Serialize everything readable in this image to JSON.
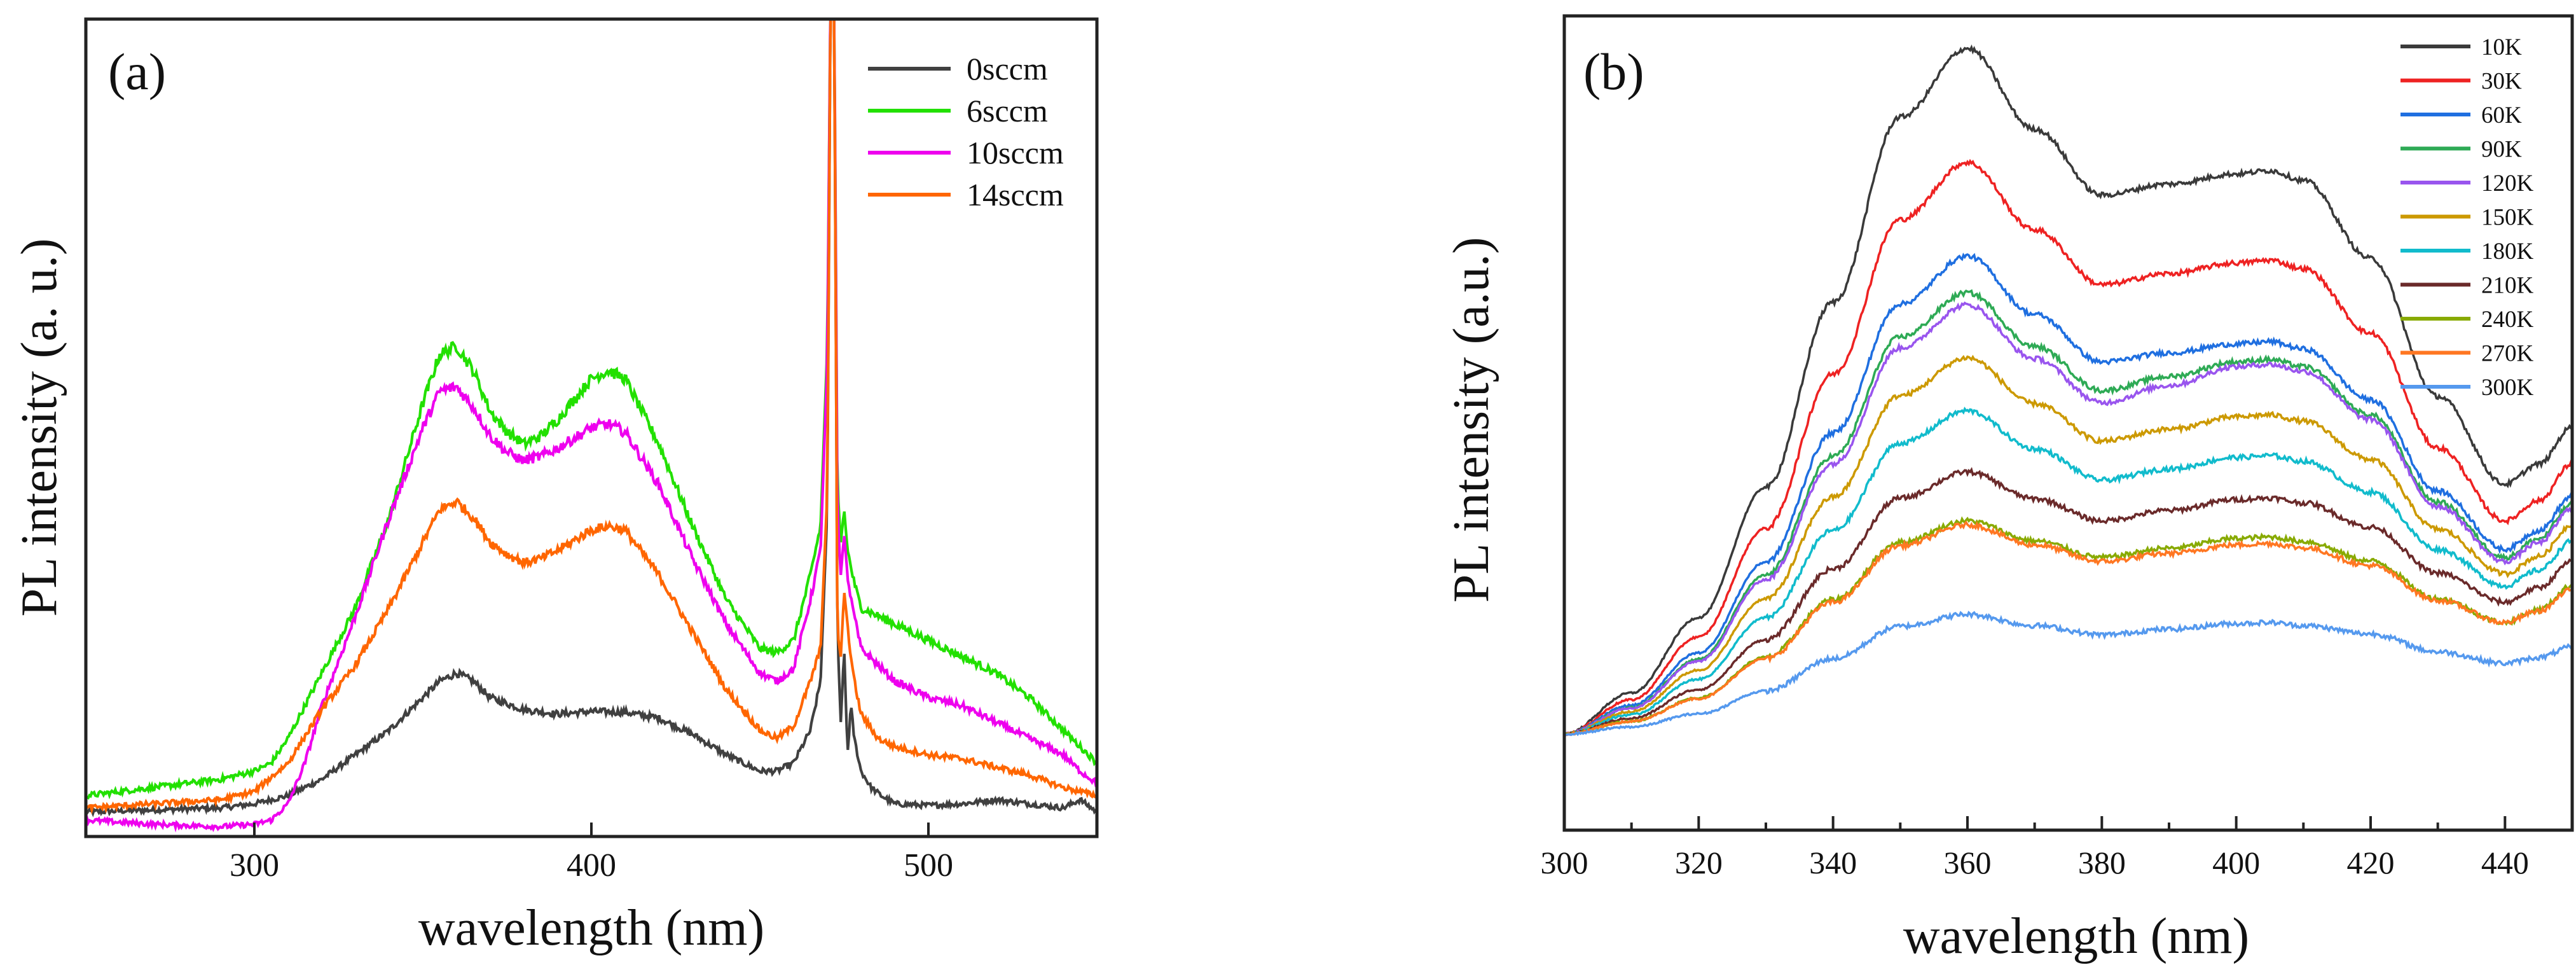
{
  "chart_data": [
    {
      "panel_label": "(a)",
      "type": "line",
      "xlabel": "wavelength (nm)",
      "ylabel": "PL intensity (a. u.)",
      "xlim": [
        250,
        550
      ],
      "ylim": [
        0,
        1000
      ],
      "xticks": [
        300,
        400,
        500
      ],
      "xtick_labels": [
        "300",
        "400",
        "500"
      ],
      "yticks_shown": false,
      "grid": false,
      "legend": {
        "position": "top-right"
      },
      "series": [
        {
          "name": "0sccm",
          "color": "#404040",
          "x": [
            250,
            290,
            300,
            310,
            320,
            330,
            340,
            350,
            355,
            360,
            365,
            370,
            380,
            390,
            400,
            410,
            420,
            430,
            440,
            450,
            455,
            460,
            465,
            468,
            470,
            471,
            472,
            473,
            474,
            475,
            476,
            477,
            478,
            480,
            483,
            486,
            490,
            500,
            510,
            520,
            530,
            540,
            545,
            550
          ],
          "y": [
            30,
            35,
            40,
            50,
            70,
            100,
            130,
            170,
            190,
            200,
            190,
            170,
            155,
            150,
            153,
            152,
            145,
            125,
            100,
            80,
            80,
            90,
            130,
            190,
            400,
            1050,
            1050,
            250,
            140,
            230,
            100,
            160,
            120,
            80,
            60,
            50,
            40,
            38,
            40,
            45,
            40,
            35,
            45,
            30
          ]
        },
        {
          "name": "6sccm",
          "color": "#22e000",
          "x": [
            250,
            270,
            290,
            300,
            305,
            310,
            320,
            330,
            340,
            350,
            355,
            360,
            365,
            370,
            375,
            380,
            385,
            390,
            400,
            405,
            410,
            420,
            430,
            440,
            450,
            455,
            460,
            465,
            468,
            470,
            471,
            472,
            473,
            474,
            475,
            476,
            477,
            478,
            480,
            485,
            490,
            500,
            510,
            520,
            530,
            540,
            545,
            550
          ],
          "y": [
            50,
            60,
            70,
            80,
            90,
            120,
            200,
            280,
            390,
            530,
            590,
            600,
            570,
            520,
            495,
            480,
            490,
            510,
            560,
            570,
            560,
            480,
            380,
            290,
            230,
            225,
            240,
            320,
            380,
            600,
            1050,
            1050,
            430,
            360,
            400,
            350,
            330,
            310,
            280,
            270,
            260,
            240,
            220,
            200,
            170,
            130,
            110,
            90
          ]
        },
        {
          "name": "10sccm",
          "color": "#ee00ee",
          "x": [
            250,
            270,
            290,
            300,
            305,
            310,
            315,
            320,
            330,
            340,
            350,
            355,
            360,
            365,
            370,
            375,
            380,
            385,
            390,
            400,
            405,
            410,
            420,
            430,
            440,
            450,
            455,
            460,
            465,
            468,
            470,
            471,
            472,
            473,
            474,
            475,
            476,
            477,
            478,
            480,
            485,
            490,
            500,
            510,
            520,
            530,
            540,
            545,
            550
          ],
          "y": [
            20,
            15,
            12,
            15,
            20,
            40,
            90,
            160,
            270,
            390,
            500,
            545,
            550,
            525,
            490,
            470,
            460,
            465,
            475,
            500,
            505,
            495,
            430,
            340,
            260,
            200,
            190,
            205,
            290,
            350,
            580,
            1050,
            1050,
            400,
            320,
            370,
            320,
            290,
            270,
            230,
            210,
            190,
            170,
            160,
            140,
            120,
            100,
            80,
            65
          ]
        },
        {
          "name": "14sccm",
          "color": "#ff6600",
          "x": [
            250,
            270,
            290,
            300,
            310,
            320,
            330,
            340,
            350,
            355,
            360,
            365,
            370,
            375,
            380,
            385,
            390,
            400,
            405,
            410,
            420,
            430,
            440,
            450,
            455,
            460,
            465,
            468,
            470,
            471,
            472,
            473,
            474,
            475,
            476,
            477,
            478,
            480,
            485,
            490,
            500,
            510,
            520,
            530,
            540,
            545,
            550
          ],
          "y": [
            35,
            40,
            45,
            55,
            90,
            155,
            210,
            280,
            360,
            400,
            410,
            390,
            360,
            345,
            335,
            340,
            350,
            375,
            380,
            375,
            320,
            250,
            180,
            130,
            120,
            135,
            190,
            230,
            420,
            1050,
            1050,
            250,
            220,
            300,
            260,
            220,
            190,
            150,
            120,
            110,
            100,
            95,
            85,
            75,
            60,
            55,
            50
          ]
        }
      ]
    },
    {
      "panel_label": "(b)",
      "type": "line",
      "xlabel": "wavelength (nm)",
      "ylabel": "PL intensity (a.u.)",
      "xlim": [
        300,
        450
      ],
      "ylim": [
        0,
        1000
      ],
      "xticks": [
        300,
        320,
        340,
        360,
        380,
        400,
        420,
        440
      ],
      "xtick_labels": [
        "300",
        "320",
        "340",
        "360",
        "380",
        "400",
        "420",
        "440"
      ],
      "yticks_shown": false,
      "grid": false,
      "legend": {
        "position": "top-right"
      },
      "series": [
        {
          "name": "10K",
          "color": "#3a3a3a",
          "peak1": 960,
          "valley": 780,
          "peak2": 810,
          "end_min": 425,
          "end_max": 495
        },
        {
          "name": "30K",
          "color": "#ee2222",
          "peak1": 820,
          "valley": 670,
          "peak2": 700,
          "end_min": 380,
          "end_max": 450
        },
        {
          "name": "60K",
          "color": "#1f6fe0",
          "peak1": 705,
          "valley": 575,
          "peak2": 600,
          "end_min": 345,
          "end_max": 410
        },
        {
          "name": "90K",
          "color": "#2eaa55",
          "peak1": 660,
          "valley": 540,
          "peak2": 578,
          "end_min": 335,
          "end_max": 400
        },
        {
          "name": "120K",
          "color": "#9955ee",
          "peak1": 645,
          "valley": 525,
          "peak2": 572,
          "end_min": 330,
          "end_max": 395
        },
        {
          "name": "150K",
          "color": "#cc9900",
          "peak1": 580,
          "valley": 478,
          "peak2": 510,
          "end_min": 315,
          "end_max": 375
        },
        {
          "name": "180K",
          "color": "#11bbcc",
          "peak1": 515,
          "valley": 430,
          "peak2": 460,
          "end_min": 300,
          "end_max": 355
        },
        {
          "name": "210K",
          "color": "#6a2a2a",
          "peak1": 440,
          "valley": 380,
          "peak2": 408,
          "end_min": 280,
          "end_max": 330
        },
        {
          "name": "240K",
          "color": "#88aa00",
          "peak1": 380,
          "valley": 335,
          "peak2": 360,
          "end_min": 255,
          "end_max": 300
        },
        {
          "name": "270K",
          "color": "#ff7722",
          "peak1": 375,
          "valley": 330,
          "peak2": 352,
          "end_min": 255,
          "end_max": 295
        },
        {
          "name": "300K",
          "color": "#5599ee",
          "peak1": 265,
          "valley": 240,
          "peak2": 255,
          "end_min": 205,
          "end_max": 225
        }
      ]
    }
  ]
}
